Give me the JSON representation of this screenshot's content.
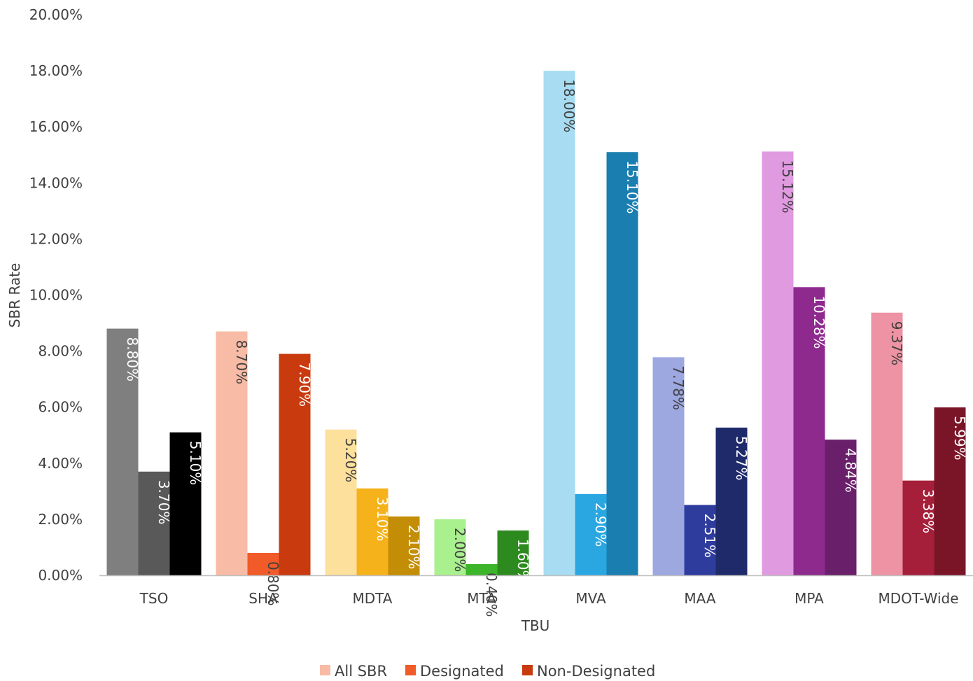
{
  "chart_data": {
    "type": "bar",
    "xlabel": "TBU",
    "ylabel": "SBR Rate",
    "ylim": [
      0,
      20
    ],
    "ytick_step": 2,
    "ytick_labels": [
      "0.00%",
      "2.00%",
      "4.00%",
      "6.00%",
      "8.00%",
      "10.00%",
      "12.00%",
      "14.00%",
      "16.00%",
      "18.00%",
      "20.00%"
    ],
    "categories": [
      "TSO",
      "SHA",
      "MDTA",
      "MTA",
      "MVA",
      "MAA",
      "MPA",
      "MDOT-Wide"
    ],
    "series": [
      {
        "name": "All SBR",
        "legend_color": "#F8BBA5",
        "values": [
          8.8,
          8.7,
          5.2,
          2.0,
          18.0,
          7.78,
          15.12,
          9.37
        ],
        "labels": [
          "8.80%",
          "8.70%",
          "5.20%",
          "2.00%",
          "18.00%",
          "7.78%",
          "15.12%",
          "9.37%"
        ]
      },
      {
        "name": "Designated",
        "legend_color": "#F15A29",
        "values": [
          3.7,
          0.8,
          3.1,
          0.4,
          2.9,
          2.51,
          10.28,
          3.38
        ],
        "labels": [
          "3.70%",
          "0.80%",
          "3.10%",
          "0.40%",
          "2.90%",
          "2.51%",
          "10.28%",
          "3.38%"
        ]
      },
      {
        "name": "Non-Designated",
        "legend_color": "#C93A0F",
        "values": [
          5.1,
          7.9,
          2.1,
          1.6,
          15.1,
          5.27,
          4.84,
          5.99
        ],
        "labels": [
          "5.10%",
          "7.90%",
          "2.10%",
          "1.60%",
          "15.10%",
          "5.27%",
          "4.84%",
          "5.99%"
        ]
      }
    ],
    "bar_colors": [
      [
        "#7F7F7F",
        "#595959",
        "#000000"
      ],
      [
        "#F8BBA5",
        "#F15A29",
        "#C93A0F"
      ],
      [
        "#FCE09C",
        "#F6B21A",
        "#C48D06"
      ],
      [
        "#A9F08E",
        "#3CB52A",
        "#2D8A1E"
      ],
      [
        "#A8DCF2",
        "#2AA7E1",
        "#1A7EB0"
      ],
      [
        "#9DA7E0",
        "#2E3C9E",
        "#1F2A6B"
      ],
      [
        "#E09AE0",
        "#8E2A8E",
        "#6A1F6A"
      ],
      [
        "#EE93A3",
        "#A61F3A",
        "#7A1528"
      ]
    ],
    "label_colors": [
      [
        "#FFFFFF",
        "#FFFFFF",
        "#FFFFFF"
      ],
      [
        "#404040",
        "#404040",
        "#FFFFFF"
      ],
      [
        "#404040",
        "#FFFFFF",
        "#FFFFFF"
      ],
      [
        "#404040",
        "#404040",
        "#FFFFFF"
      ],
      [
        "#404040",
        "#FFFFFF",
        "#FFFFFF"
      ],
      [
        "#404040",
        "#FFFFFF",
        "#FFFFFF"
      ],
      [
        "#404040",
        "#FFFFFF",
        "#FFFFFF"
      ],
      [
        "#404040",
        "#FFFFFF",
        "#FFFFFF"
      ]
    ],
    "grid": false,
    "legend_position": "bottom"
  }
}
